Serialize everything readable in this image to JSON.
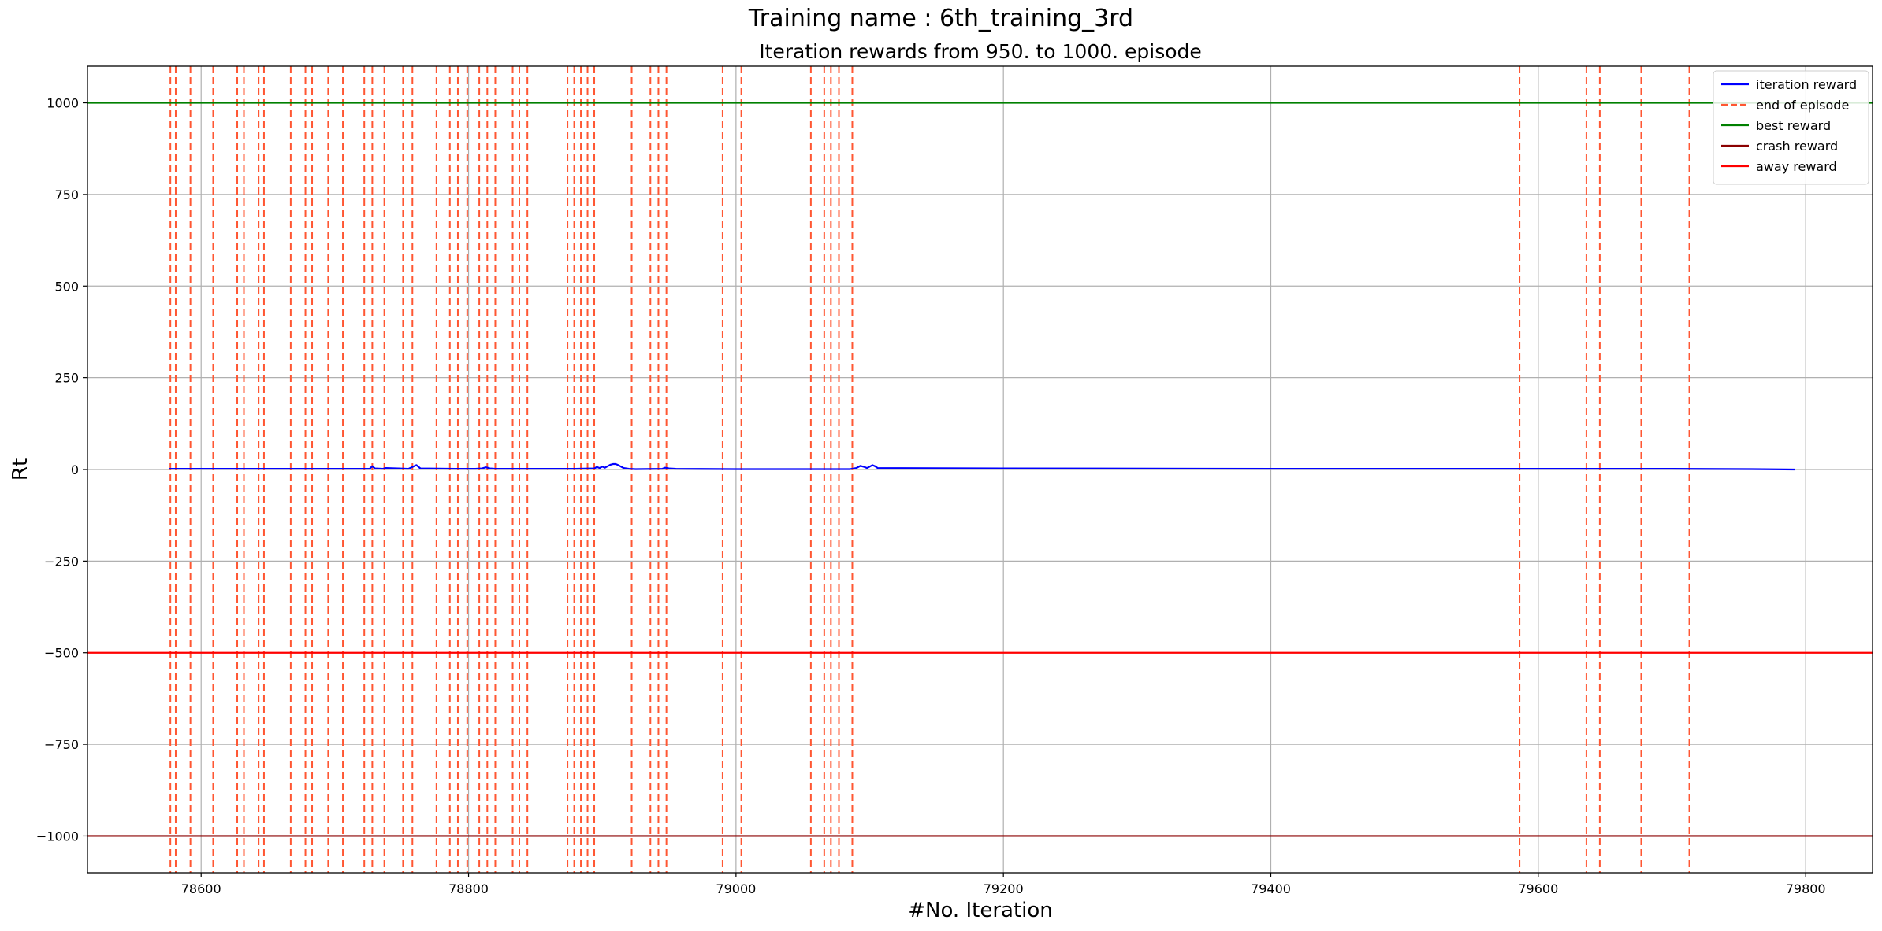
{
  "chart_data": {
    "type": "line",
    "suptitle": "Training name : 6th_training_3rd",
    "title": "Iteration rewards from 950. to 1000. episode",
    "xlabel": "#No. Iteration",
    "ylabel": "Rt",
    "xlim": [
      78515,
      79850
    ],
    "ylim": [
      -1100,
      1100
    ],
    "xticks": [
      78600,
      78800,
      79000,
      79200,
      79400,
      79600,
      79800
    ],
    "xtick_labels": [
      "78600",
      "78800",
      "79000",
      "79200",
      "79400",
      "79600",
      "79800"
    ],
    "yticks": [
      1000,
      750,
      500,
      250,
      0,
      -250,
      -500,
      -750,
      -1000
    ],
    "ytick_labels": [
      "1000",
      "750",
      "500",
      "250",
      "0",
      "−250",
      "−500",
      "−750",
      "−1000"
    ],
    "grid": true,
    "legend_position": "top-right",
    "legend": [
      {
        "label": "iteration reward",
        "color": "#0000ff",
        "style": "solid"
      },
      {
        "label": "end of episode",
        "color": "#ff5733",
        "style": "dashed"
      },
      {
        "label": "best reward",
        "color": "#008000",
        "style": "solid"
      },
      {
        "label": "crash reward",
        "color": "#8b0000",
        "style": "solid"
      },
      {
        "label": "away reward",
        "color": "#ff0000",
        "style": "solid"
      }
    ],
    "hlines": [
      {
        "name": "best reward",
        "y": 1000,
        "color": "#008000"
      },
      {
        "name": "away reward",
        "y": -500,
        "color": "#ff0000"
      },
      {
        "name": "crash reward",
        "y": -1000,
        "color": "#8b0000"
      }
    ],
    "episode_ends": [
      78577,
      78581,
      78592,
      78609,
      78627,
      78632,
      78643,
      78647,
      78667,
      78678,
      78683,
      78695,
      78706,
      78722,
      78728,
      78737,
      78751,
      78758,
      78776,
      78786,
      78792,
      78799,
      78808,
      78814,
      78820,
      78833,
      78838,
      78844,
      78874,
      78879,
      78884,
      78889,
      78894,
      78922,
      78936,
      78942,
      78948,
      78990,
      79004,
      79056,
      79066,
      79071,
      79077,
      79087,
      79586,
      79636,
      79646,
      79677,
      79713
    ],
    "series": [
      {
        "name": "iteration reward",
        "color": "#0000ff",
        "x": [
          78576,
          78600,
          78620,
          78650,
          78700,
          78722,
          78726,
          78728,
          78730,
          78736,
          78738,
          78755,
          78758,
          78761,
          78764,
          78790,
          78805,
          78810,
          78813,
          78816,
          78820,
          78880,
          78894,
          78896,
          78898,
          78900,
          78902,
          78904,
          78906,
          78908,
          78910,
          78912,
          78914,
          78916,
          78920,
          78925,
          78945,
          78947,
          78950,
          78955,
          79000,
          79050,
          79085,
          79090,
          79093,
          79096,
          79098,
          79100,
          79102,
          79104,
          79106,
          79200,
          79400,
          79600,
          79700,
          79760,
          79792
        ],
        "y": [
          2,
          2,
          2,
          2,
          2,
          2,
          2,
          9,
          3,
          2,
          4,
          2,
          7,
          12,
          3,
          2,
          2,
          3,
          6,
          3,
          2,
          2,
          3,
          7,
          4,
          8,
          5,
          9,
          13,
          15,
          15,
          12,
          8,
          4,
          2,
          1,
          2,
          5,
          3,
          2,
          1,
          1,
          1,
          4,
          10,
          7,
          4,
          8,
          12,
          9,
          4,
          3,
          2,
          2,
          2,
          1,
          0
        ]
      }
    ]
  }
}
